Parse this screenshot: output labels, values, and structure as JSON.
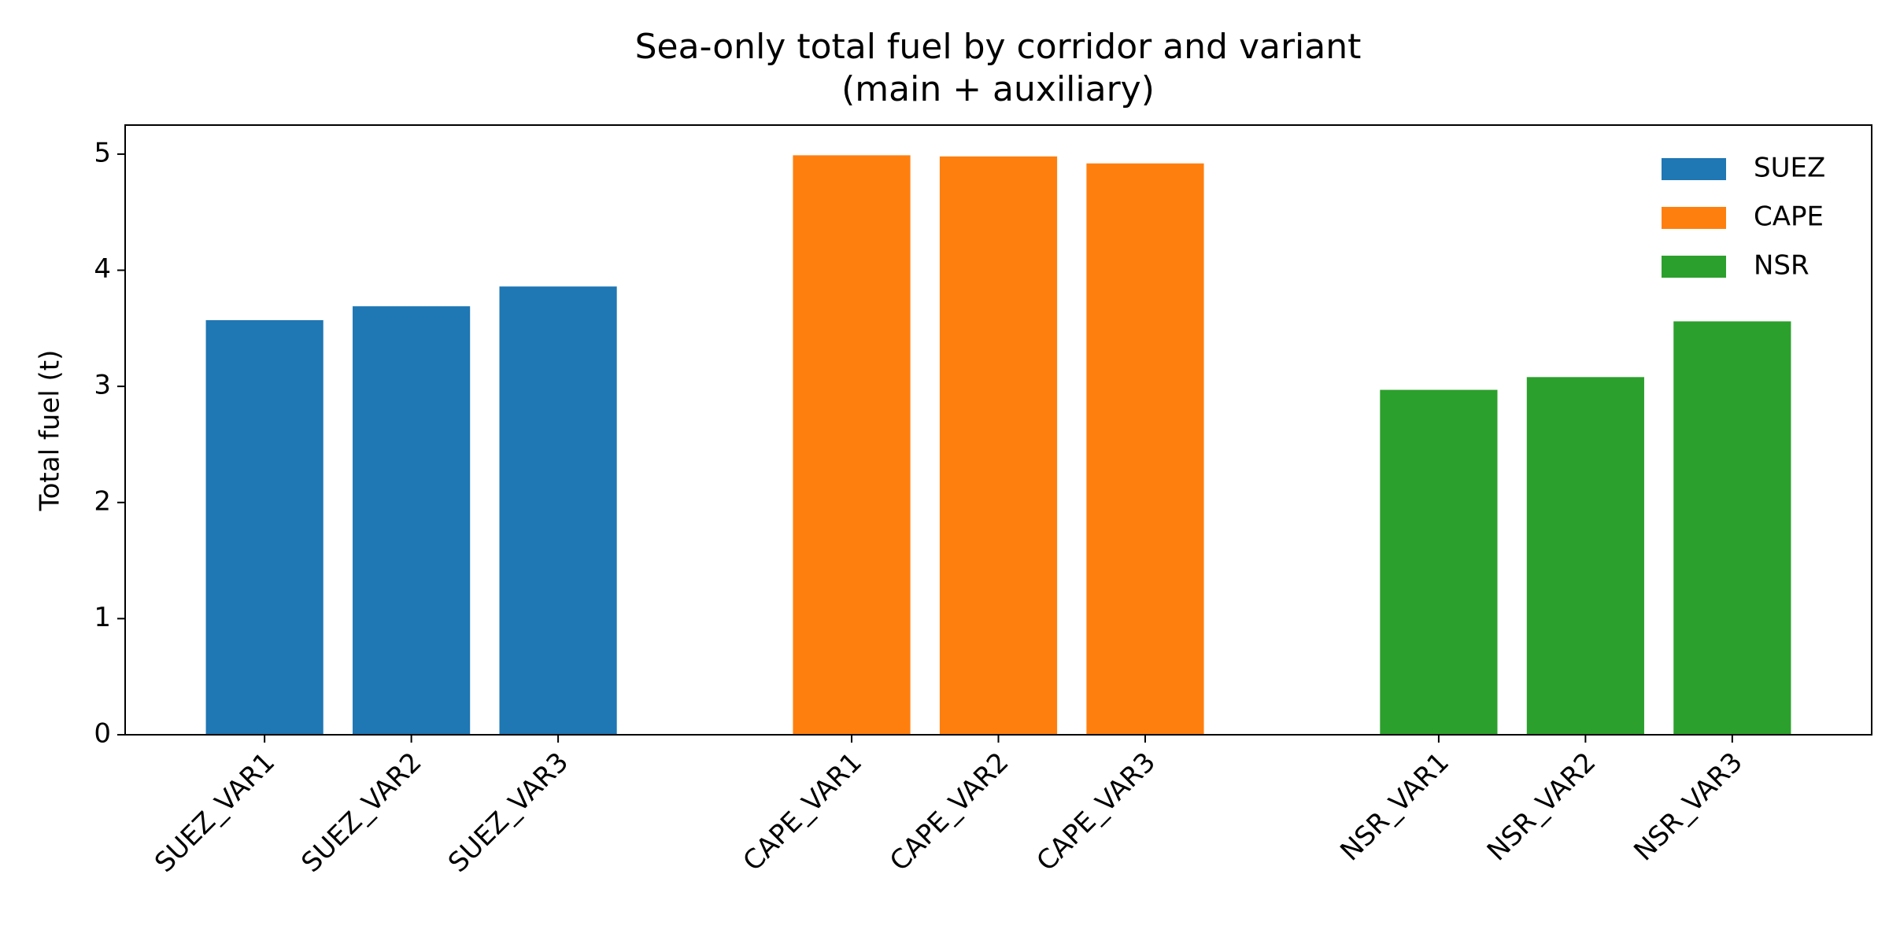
{
  "chart_data": {
    "type": "bar",
    "title": "Sea-only total fuel by corridor and variant",
    "subtitle": "(main + auxiliary)",
    "y_label": "Total fuel (t)",
    "categories": [
      "SUEZ_VAR1",
      "SUEZ_VAR2",
      "SUEZ_VAR3",
      "CAPE_VAR1",
      "CAPE_VAR2",
      "CAPE_VAR3",
      "NSR_VAR1",
      "NSR_VAR2",
      "NSR_VAR3"
    ],
    "series": [
      {
        "name": "SUEZ",
        "color": "#1f77b4",
        "values": [
          3.57,
          3.69,
          3.86,
          null,
          null,
          null,
          null,
          null,
          null
        ]
      },
      {
        "name": "CAPE",
        "color": "#ff7f0e",
        "values": [
          null,
          null,
          null,
          4.99,
          4.98,
          4.92,
          null,
          null,
          null
        ]
      },
      {
        "name": "NSR",
        "color": "#2ca02c",
        "values": [
          null,
          null,
          null,
          null,
          null,
          null,
          2.97,
          3.08,
          3.56
        ]
      }
    ],
    "ylim": [
      0,
      5.25
    ],
    "yticks": [
      0,
      1,
      2,
      3,
      4,
      5
    ],
    "legend": "upper right"
  }
}
